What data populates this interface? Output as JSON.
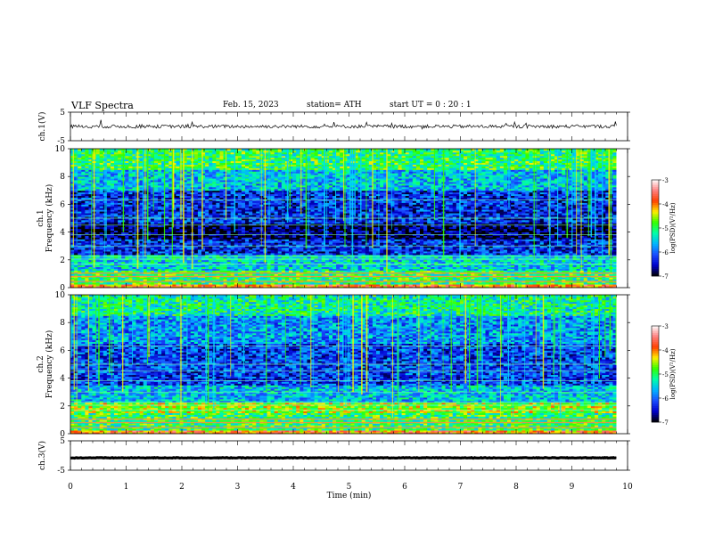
{
  "header": {
    "title": "VLF  Spectra",
    "date": "Feb. 15, 2023",
    "station": "station= ATH",
    "start": "start  UT  =    0  : 20 : 1"
  },
  "chart_data": [
    {
      "type": "line",
      "panel": "ch1-waveform",
      "ylabel": "ch.1(V)",
      "ylim": [
        -5,
        5
      ],
      "yticks": [
        "5",
        "-5"
      ],
      "xlim": [
        0,
        10
      ],
      "x_extent": [
        0,
        9.8
      ],
      "baseline": 0,
      "amplitude": 0.6,
      "grid": false
    },
    {
      "type": "heatmap",
      "panel": "ch1-spectrogram",
      "ylabel_top": "ch.1",
      "ylabel": "Frequency  (kHz)",
      "ylim": [
        0,
        10
      ],
      "yticks": [
        "0",
        "2",
        "4",
        "6",
        "8",
        "10"
      ],
      "xlim": [
        0,
        10
      ],
      "x_extent": [
        0,
        9.8
      ],
      "bands_khz": [
        {
          "from": 0,
          "to": 0.3,
          "level": -4
        },
        {
          "from": 0.3,
          "to": 1.2,
          "level": -5
        },
        {
          "from": 1.2,
          "to": 2.4,
          "level": -5.5
        },
        {
          "from": 2.4,
          "to": 3.5,
          "level": -6.3
        },
        {
          "from": 3.5,
          "to": 4.6,
          "level": -6.8
        },
        {
          "from": 4.6,
          "to": 7.0,
          "level": -6.3
        },
        {
          "from": 7.0,
          "to": 8.5,
          "level": -5.6
        },
        {
          "from": 8.5,
          "to": 10,
          "level": -5.0
        }
      ],
      "colorbar": {
        "label": "log(PSD)(V²/Hz)",
        "ticks": [
          "-3",
          "-4",
          "-5",
          "-6",
          "-7"
        ],
        "range": [
          -7,
          -3
        ]
      }
    },
    {
      "type": "heatmap",
      "panel": "ch2-spectrogram",
      "ylabel_top": "ch.2",
      "ylabel": "Frequency  (kHz)",
      "ylim": [
        0,
        10
      ],
      "yticks": [
        "0",
        "2",
        "4",
        "6",
        "8",
        "10"
      ],
      "xlim": [
        0,
        10
      ],
      "x_extent": [
        0,
        9.8
      ],
      "bands_khz": [
        {
          "from": 0,
          "to": 0.3,
          "level": -4
        },
        {
          "from": 0.3,
          "to": 1.5,
          "level": -5
        },
        {
          "from": 1.5,
          "to": 2.3,
          "level": -4.6
        },
        {
          "from": 2.3,
          "to": 3.5,
          "level": -5.6
        },
        {
          "from": 3.5,
          "to": 6.5,
          "level": -6.2
        },
        {
          "from": 6.5,
          "to": 8.5,
          "level": -5.8
        },
        {
          "from": 8.5,
          "to": 10,
          "level": -5.2
        }
      ],
      "colorbar": {
        "label": "log(PSD)(V²/Hz)",
        "ticks": [
          "-3",
          "-4",
          "-5",
          "-6",
          "-7"
        ],
        "range": [
          -7,
          -3
        ]
      }
    },
    {
      "type": "line",
      "panel": "ch3-waveform",
      "ylabel": "ch.3(V)",
      "ylim": [
        -5,
        5
      ],
      "yticks": [
        "5",
        "-5"
      ],
      "xlim": [
        0,
        10
      ],
      "x_extent": [
        0,
        9.8
      ],
      "baseline": -0.8,
      "amplitude": 0.1,
      "xlabel": "Time  (min)",
      "xticks": [
        "0",
        "1",
        "2",
        "3",
        "4",
        "5",
        "6",
        "7",
        "8",
        "9",
        "10"
      ],
      "grid": false
    }
  ],
  "colors": {
    "frame": "#000000",
    "trace": "#000000",
    "colormap": [
      "#000000",
      "#0000cc",
      "#1a4dff",
      "#00b4ff",
      "#00ffaa",
      "#33ff00",
      "#ffee00",
      "#ff4000",
      "#ff8080",
      "#ffffff"
    ]
  }
}
